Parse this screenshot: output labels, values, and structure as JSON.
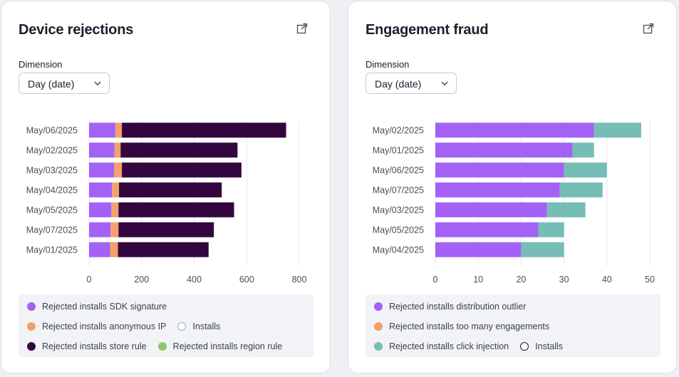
{
  "colors": {
    "sdk_signature": "#a461f6",
    "anonymous_ip": "#f3a06a",
    "store_rule": "#33063f",
    "region_rule": "#8fc66a",
    "installs_ring_teal": "#7bc1b9",
    "distribution_outlier": "#a461f6",
    "too_many_engagements": "#f3a06a",
    "click_injection": "#76bdb6",
    "installs_ring_dark": "#22123a"
  },
  "cards": [
    {
      "title": "Device rejections",
      "export_icon": "export-icon",
      "dimension_label": "Dimension",
      "dimension_value": "Day (date)",
      "legend": [
        {
          "label": "Rejected installs SDK signature",
          "color": "#a461f6",
          "style": "filled"
        },
        {
          "label": "Rejected installs anonymous IP",
          "color": "#f3a06a",
          "style": "filled"
        },
        {
          "label": "Installs",
          "color": "#7bc1b9",
          "style": "ring"
        },
        {
          "label": "Rejected installs store rule",
          "color": "#33063f",
          "style": "filled"
        },
        {
          "label": "Rejected installs region rule",
          "color": "#8fc66a",
          "style": "filled"
        }
      ]
    },
    {
      "title": "Engagement fraud",
      "export_icon": "export-icon",
      "dimension_label": "Dimension",
      "dimension_value": "Day (date)",
      "legend": [
        {
          "label": "Rejected installs distribution outlier",
          "color": "#a461f6",
          "style": "filled"
        },
        {
          "label": "Rejected installs too many engagements",
          "color": "#f3a06a",
          "style": "filled"
        },
        {
          "label": "Rejected installs click injection",
          "color": "#76bdb6",
          "style": "filled"
        },
        {
          "label": "Installs",
          "color": "#22123a",
          "style": "ring"
        }
      ]
    }
  ],
  "chart_data": [
    {
      "type": "bar",
      "orientation": "horizontal",
      "stacked": true,
      "title": "Device rejections",
      "categories": [
        "May/06/2025",
        "May/02/2025",
        "May/03/2025",
        "May/04/2025",
        "May/05/2025",
        "May/07/2025",
        "May/01/2025"
      ],
      "series": [
        {
          "name": "Rejected installs SDK signature",
          "color": "#a461f6",
          "values": [
            100,
            97,
            95,
            87,
            85,
            82,
            80
          ]
        },
        {
          "name": "Rejected installs anonymous IP",
          "color": "#f3a06a",
          "values": [
            25,
            23,
            30,
            27,
            27,
            30,
            30
          ]
        },
        {
          "name": "Rejected installs store rule",
          "color": "#33063f",
          "values": [
            625,
            445,
            455,
            391,
            440,
            363,
            345
          ]
        }
      ],
      "xlim": [
        0,
        800
      ],
      "xticks": [
        0,
        200,
        400,
        600,
        800
      ],
      "grid": true
    },
    {
      "type": "bar",
      "orientation": "horizontal",
      "stacked": true,
      "title": "Engagement fraud",
      "categories": [
        "May/02/2025",
        "May/01/2025",
        "May/06/2025",
        "May/07/2025",
        "May/03/2025",
        "May/05/2025",
        "May/04/2025"
      ],
      "series": [
        {
          "name": "Rejected installs distribution outlier",
          "color": "#a461f6",
          "values": [
            37,
            32,
            30,
            29,
            26,
            24,
            20
          ]
        },
        {
          "name": "Rejected installs click injection",
          "color": "#76bdb6",
          "values": [
            11,
            5,
            10,
            10,
            9,
            6,
            10
          ]
        }
      ],
      "xlim": [
        0,
        50
      ],
      "xticks": [
        0,
        10,
        20,
        30,
        40,
        50
      ],
      "grid": true
    }
  ]
}
